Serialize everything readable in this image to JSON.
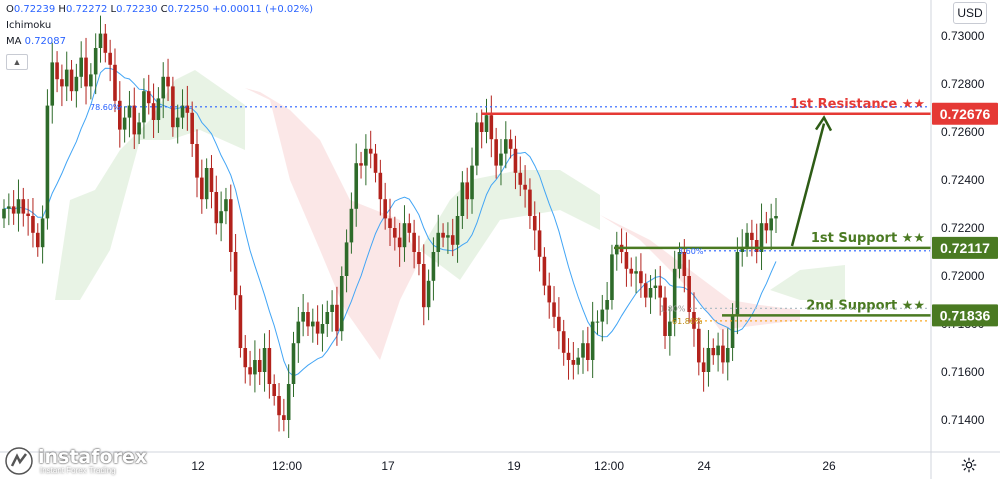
{
  "legend": {
    "ohlc": {
      "open_label": "O",
      "open": "0.72239",
      "high_label": "H",
      "high": "0.72272",
      "low_label": "L",
      "low": "0.72230",
      "close_label": "C",
      "close": "0.72250",
      "change": "+0.00011 (+0.02%)"
    },
    "indicator_1": "Ichimoku",
    "indicator_2_name": "MA",
    "indicator_2_value": "0.72087"
  },
  "currency_button": "USD",
  "logo": {
    "name": "instaforex",
    "tagline": "Instant Forex Trading"
  },
  "colors": {
    "resistance": "#e53935",
    "support": "#4a7a22",
    "arrow": "#2e5c16",
    "up_candle": "#2e6b2a",
    "down_candle": "#b2221c",
    "ma": "#42a5f5",
    "cloud_bull": "#e6f2e2",
    "cloud_bear": "#fbe4e4",
    "fib": "#2962ff"
  },
  "chart_data": {
    "type": "candlestick",
    "instrument_currency": "USD",
    "y_axis": {
      "ticks": [
        "0.73000",
        "0.72800",
        "0.72600",
        "0.72400",
        "0.72200",
        "0.72000",
        "0.71800",
        "0.71600",
        "0.71400"
      ],
      "range": [
        0.7133,
        0.7312
      ]
    },
    "x_axis": {
      "ticks": [
        "12",
        "12:00",
        "17",
        "19",
        "12:00",
        "24",
        "26"
      ]
    },
    "levels": [
      {
        "label": "1st Resistance ★★",
        "value": 0.72676,
        "price_tag": "0.72676",
        "kind": "resistance"
      },
      {
        "label": "1st Support ★★",
        "value": 0.72117,
        "price_tag": "0.72117",
        "kind": "support"
      },
      {
        "label": "2nd Support ★★",
        "value": 0.71836,
        "price_tag": "0.71836",
        "kind": "support"
      }
    ],
    "fib_labels": [
      {
        "label": "78.60%",
        "value": 0.72705
      },
      {
        "label": "3.60%",
        "value": 0.72105
      },
      {
        "label": "61.80%",
        "value": 0.71813
      },
      {
        "label": "1.80%",
        "value": 0.71865
      }
    ],
    "closes": [
      0.7228,
      0.7229,
      0.7226,
      0.7232,
      0.7226,
      0.7225,
      0.7218,
      0.7212,
      0.7224,
      0.7271,
      0.7289,
      0.7282,
      0.7279,
      0.7286,
      0.7277,
      0.7283,
      0.7291,
      0.7279,
      0.7284,
      0.7295,
      0.7301,
      0.7293,
      0.7288,
      0.7273,
      0.7261,
      0.7266,
      0.7271,
      0.7259,
      0.7264,
      0.7277,
      0.7272,
      0.7265,
      0.7274,
      0.7283,
      0.7279,
      0.7262,
      0.7266,
      0.7271,
      0.7268,
      0.7255,
      0.7241,
      0.7232,
      0.7245,
      0.7235,
      0.7222,
      0.7227,
      0.7232,
      0.721,
      0.7192,
      0.717,
      0.7162,
      0.7159,
      0.7165,
      0.716,
      0.717,
      0.7155,
      0.715,
      0.7142,
      0.714,
      0.7155,
      0.7172,
      0.7181,
      0.7185,
      0.7179,
      0.7181,
      0.7176,
      0.718,
      0.7185,
      0.7188,
      0.7177,
      0.72,
      0.7214,
      0.7228,
      0.7247,
      0.7246,
      0.7253,
      0.7251,
      0.7243,
      0.7232,
      0.7224,
      0.722,
      0.7216,
      0.7212,
      0.7222,
      0.7218,
      0.721,
      0.7205,
      0.7187,
      0.7198,
      0.721,
      0.7218,
      0.7216,
      0.7217,
      0.7213,
      0.7225,
      0.7239,
      0.7232,
      0.7246,
      0.7264,
      0.726,
      0.7267,
      0.7257,
      0.7246,
      0.7251,
      0.7257,
      0.7253,
      0.7243,
      0.7238,
      0.7236,
      0.7225,
      0.7219,
      0.7208,
      0.7196,
      0.7189,
      0.7183,
      0.7177,
      0.7168,
      0.7165,
      0.7163,
      0.7166,
      0.7172,
      0.7165,
      0.7181,
      0.7181,
      0.7186,
      0.719,
      0.7209,
      0.7213,
      0.721,
      0.7203,
      0.7201,
      0.7202,
      0.7197,
      0.7191,
      0.7195,
      0.7196,
      0.7191,
      0.7175,
      0.7181,
      0.7203,
      0.721,
      0.72,
      0.7185,
      0.7178,
      0.7164,
      0.716,
      0.717,
      0.7167,
      0.7171,
      0.7164,
      0.717,
      0.7184,
      0.721,
      0.7212,
      0.7218,
      0.7215,
      0.721,
      0.7222,
      0.7219,
      0.7224,
      0.7225
    ]
  }
}
